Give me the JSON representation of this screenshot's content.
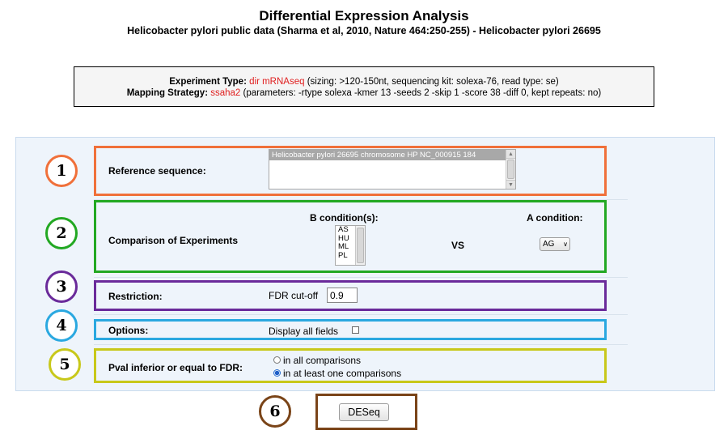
{
  "header": {
    "title": "Differential Expression Analysis",
    "subtitle": "Helicobacter pylori public data (Sharma et al, 2010, Nature 464:250-255) - Helicobacter pylori 26695"
  },
  "info": {
    "experiment_type_label": "Experiment Type:",
    "experiment_type_value": "dir mRNAseq",
    "experiment_type_details": "(sizing: >120-150nt, sequencing kit: solexa-76, read type: se)",
    "mapping_strategy_label": "Mapping Strategy:",
    "mapping_strategy_value": "ssaha2",
    "mapping_strategy_details": "(parameters: -rtype solexa -kmer 13 -seeds 2 -skip 1 -score 38 -diff 0, kept repeats: no)"
  },
  "steps": {
    "s1": "1",
    "s2": "2",
    "s3": "3",
    "s4": "4",
    "s5": "5",
    "s6": "6"
  },
  "reference": {
    "label": "Reference sequence:",
    "selected": "Helicobacter pylori 26695 chromosome HP NC_000915 184"
  },
  "comparison": {
    "label": "Comparison of Experiments",
    "b_header": "B condition(s):",
    "b_options": [
      "AS",
      "HU",
      "ML",
      "PL"
    ],
    "vs": "VS",
    "a_header": "A condition:",
    "a_value": "AG"
  },
  "restriction": {
    "label": "Restriction:",
    "fdr_label": "FDR cut-off",
    "fdr_value": "0.9"
  },
  "options": {
    "label": "Options:",
    "display_all_label": "Display all fields",
    "display_all_checked": false
  },
  "pval": {
    "label": "Pval inferior or equal to FDR:",
    "choice_all": "in all comparisons",
    "choice_one": "in at least one comparisons",
    "selected": "in at least one comparisons"
  },
  "submit": {
    "label": "DESeq"
  },
  "colors": {
    "step1": "#f0703a",
    "step2": "#22a822",
    "step3": "#6a2a9a",
    "step4": "#2aa8e0",
    "step5": "#c8c81a",
    "step6": "#7a4418",
    "highlight": "#e02020"
  }
}
